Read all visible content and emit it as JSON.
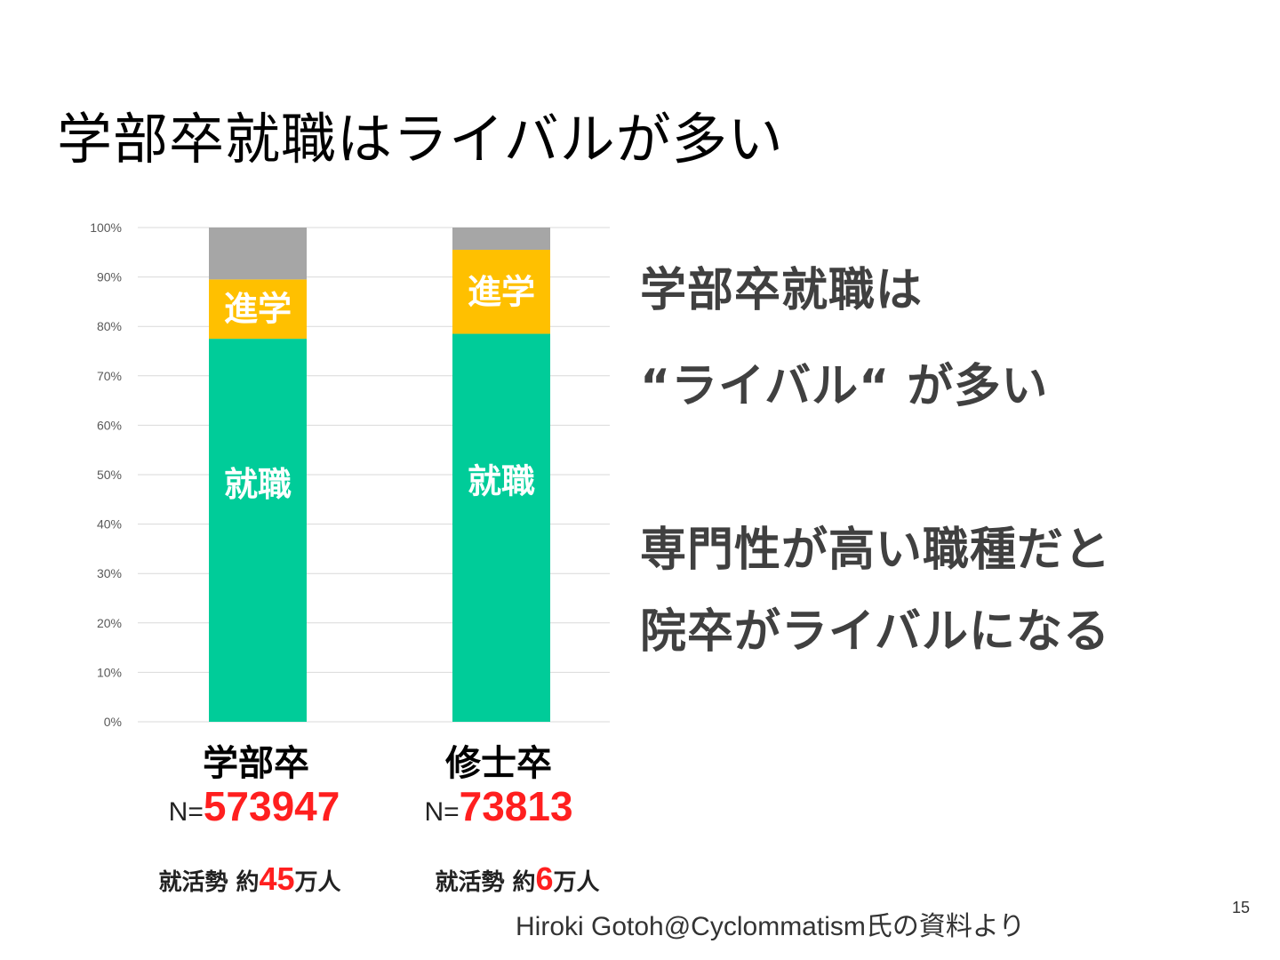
{
  "slide": {
    "title": "学部卒就職はライバルが多い",
    "page_number": "15",
    "source": "Hiroki Gotoh@Cyclommatism氏の資料より"
  },
  "chart_data": {
    "type": "bar",
    "stacked": true,
    "categories": [
      "学部卒",
      "修士卒"
    ],
    "series": [
      {
        "name": "就職",
        "values": [
          77.5,
          78.5
        ],
        "color": "#00cc99"
      },
      {
        "name": "進学",
        "values": [
          12,
          17
        ],
        "color": "#ffc000"
      },
      {
        "values": [
          10.5,
          4.5
        ],
        "color": "#a6a6a6"
      }
    ],
    "ylim": [
      0,
      100
    ],
    "yticks": [
      "0%",
      "10%",
      "20%",
      "30%",
      "40%",
      "50%",
      "60%",
      "70%",
      "80%",
      "90%",
      "100%"
    ],
    "grid": true
  },
  "below_chart": [
    {
      "category": "学部卒",
      "n_prefix": "N=",
      "n_value": "573947",
      "job_prefix": "就活勢 約",
      "job_num": "45",
      "job_suffix": "万人"
    },
    {
      "category": "修士卒",
      "n_prefix": "N=",
      "n_value": "73813",
      "job_prefix": "就活勢 約",
      "job_num": "6",
      "job_suffix": "万人"
    }
  ],
  "callout": {
    "line1": "学部卒就職は",
    "line2": "“ライバル“ が多い",
    "line3": "専門性が高い職種だと",
    "line4": "院卒がライバルになる"
  }
}
